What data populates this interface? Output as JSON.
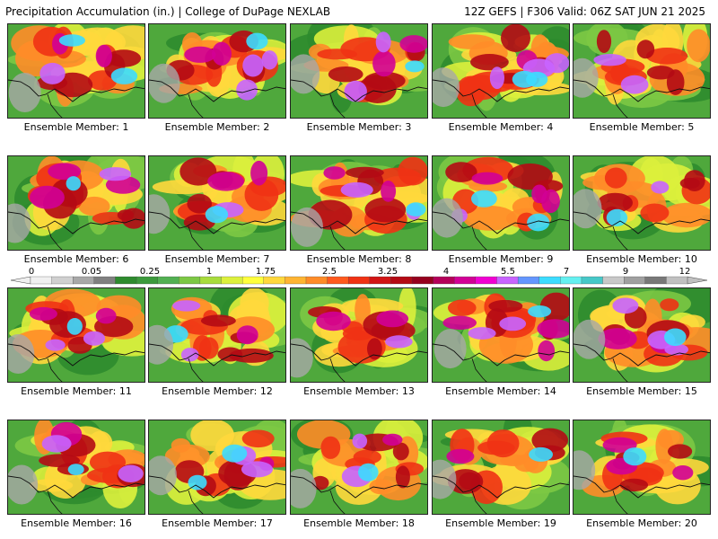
{
  "header": {
    "left_title": "Precipitation Accumulation (in.) | College of DuPage NEXLAB",
    "right_title": "12Z GEFS | F306 Valid: 06Z SAT JUN 21 2025"
  },
  "panels": [
    {
      "label": "Ensemble Member: 1"
    },
    {
      "label": "Ensemble Member: 2"
    },
    {
      "label": "Ensemble Member: 3"
    },
    {
      "label": "Ensemble Member: 4"
    },
    {
      "label": "Ensemble Member: 5"
    },
    {
      "label": "Ensemble Member: 6"
    },
    {
      "label": "Ensemble Member: 7"
    },
    {
      "label": "Ensemble Member: 8"
    },
    {
      "label": "Ensemble Member: 9"
    },
    {
      "label": "Ensemble Member: 10"
    },
    {
      "label": "Ensemble Member: 11"
    },
    {
      "label": "Ensemble Member: 12"
    },
    {
      "label": "Ensemble Member: 13"
    },
    {
      "label": "Ensemble Member: 14"
    },
    {
      "label": "Ensemble Member: 15"
    },
    {
      "label": "Ensemble Member: 16"
    },
    {
      "label": "Ensemble Member: 17"
    },
    {
      "label": "Ensemble Member: 18"
    },
    {
      "label": "Ensemble Member: 19"
    },
    {
      "label": "Ensemble Member: 20"
    }
  ],
  "colorbar": {
    "tick_labels": [
      "0",
      "0.05",
      "0.25",
      "1",
      "1.75",
      "2.5",
      "3.25",
      "4",
      "5.5",
      "7",
      "9",
      "12"
    ],
    "colors": [
      "#f0f0f0",
      "#d0d0d0",
      "#a8a8a8",
      "#808080",
      "#2e8b2e",
      "#3c9a3c",
      "#52b052",
      "#7cc844",
      "#a8dc3c",
      "#dcf03c",
      "#ffff3c",
      "#ffd83c",
      "#ffb432",
      "#ff8c28",
      "#ff5a1e",
      "#f03214",
      "#d21414",
      "#b40a14",
      "#96001e",
      "#b4005a",
      "#d20096",
      "#f000d2",
      "#c864ff",
      "#6496ff",
      "#3cdcff",
      "#64f0f0",
      "#46c8c8",
      "#c8c8c8",
      "#a0a0a0",
      "#787878",
      "#c0c0c0"
    ]
  }
}
